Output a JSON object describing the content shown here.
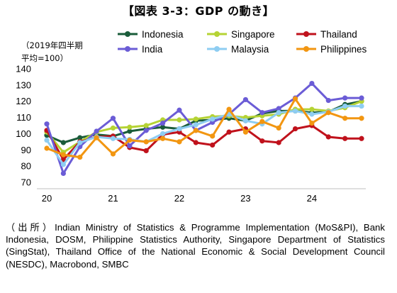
{
  "title": "【図表 3-3：GDP の動き】",
  "source": "（出所）Indian Ministry of Statistics & Programme Implementation (MoS&PI), Bank Indonesia, DOSM, Philippine Statistics Authority, Singapore Department of Statistics (SingStat), Thailand Office of the National Economic & Social Development Council (NESDC), Macrobond, SMBC",
  "chart_data": {
    "type": "line",
    "ylabel": "（2019年四半期平均=100）",
    "ylabel_lines": [
      "（2019年四半期",
      "平均=100）"
    ],
    "ylim": [
      70,
      140
    ],
    "yticks": [
      "70",
      "80",
      "90",
      "100",
      "110",
      "120",
      "130",
      "140"
    ],
    "xticks": [
      "20",
      "21",
      "22",
      "23",
      "24"
    ],
    "x": [
      "2020Q1",
      "2020Q2",
      "2020Q3",
      "2020Q4",
      "2021Q1",
      "2021Q2",
      "2021Q3",
      "2021Q4",
      "2022Q1",
      "2022Q2",
      "2022Q3",
      "2022Q4",
      "2023Q1",
      "2023Q2",
      "2023Q3",
      "2023Q4",
      "2024Q1",
      "2024Q2",
      "2024Q3",
      "2024Q4"
    ],
    "grid": false,
    "legend_position": "top",
    "series": [
      {
        "name": "Indonesia",
        "color": "#1a5c3a",
        "values": [
          99,
          94.5,
          97.5,
          99.5,
          98.5,
          101.5,
          103,
          104,
          103,
          108,
          108.5,
          109.5,
          108,
          112.5,
          114,
          114,
          113,
          113.5,
          118,
          120
        ]
      },
      {
        "name": "Singapore",
        "color": "#b5d334",
        "values": [
          101,
          88.5,
          95,
          101,
          103.5,
          104,
          105,
          108.5,
          108.5,
          109,
          110.5,
          111,
          110,
          111,
          112,
          115,
          115,
          114,
          116,
          120
        ]
      },
      {
        "name": "Thailand",
        "color": "#c0121c",
        "values": [
          102,
          84,
          95,
          98,
          98.5,
          91.5,
          89.5,
          99.5,
          101,
          94.5,
          93,
          101,
          103,
          95.5,
          94.5,
          103,
          105,
          98,
          97,
          97
        ]
      },
      {
        "name": "India",
        "color": "#6b5cd6",
        "values": [
          106,
          75.5,
          92,
          101.5,
          109.5,
          92.5,
          102,
          106.5,
          114.5,
          102,
          107,
          112,
          121,
          113,
          115.5,
          122,
          131,
          120.5,
          122,
          122
        ]
      },
      {
        "name": "Malaysia",
        "color": "#8ecdf2",
        "values": [
          96,
          81,
          94.5,
          98,
          97,
          96.5,
          95,
          100,
          103,
          105.5,
          109,
          112,
          108,
          106,
          113,
          114,
          112,
          113.5,
          117,
          117
        ]
      },
      {
        "name": "Philippines",
        "color": "#f29611",
        "values": [
          91,
          87,
          85.5,
          97.5,
          87.5,
          96,
          95,
          97,
          95,
          102,
          98.5,
          115,
          101,
          107.5,
          103.5,
          121.5,
          106.5,
          113,
          109.5,
          109.5
        ]
      }
    ]
  }
}
